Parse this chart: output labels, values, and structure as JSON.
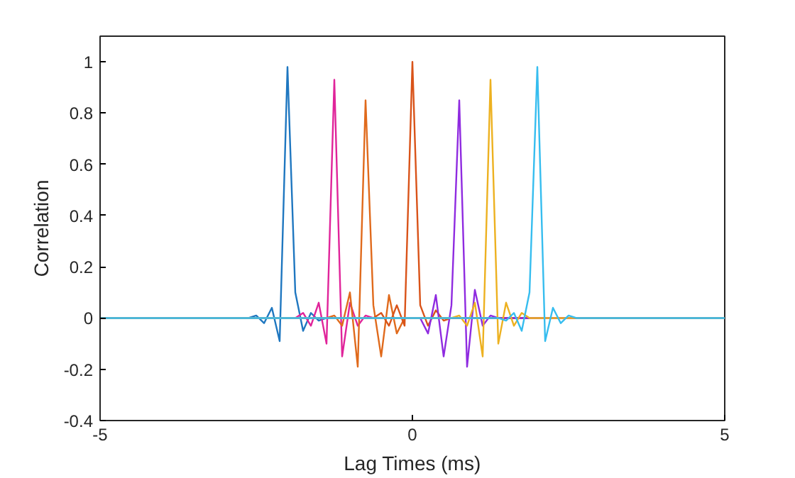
{
  "chart_data": {
    "type": "line",
    "xlabel": "Lag Times (ms)",
    "ylabel": "Correlation",
    "xlim": [
      -5,
      5
    ],
    "ylim": [
      -0.4,
      1.1
    ],
    "xticks": [
      -5,
      0,
      5
    ],
    "yticks": [
      -0.4,
      -0.2,
      0,
      0.2,
      0.4,
      0.6,
      0.8,
      1
    ],
    "grid": false,
    "series": [
      {
        "color": "#1f77c0",
        "x": [
          -5,
          -2.625,
          -2.5,
          -2.375,
          -2.25,
          -2.125,
          -2,
          -1.875,
          -1.75,
          -1.625,
          -1.5,
          -1.375,
          5
        ],
        "values": [
          0,
          0,
          0.01,
          -0.02,
          0.04,
          -0.09,
          0.98,
          0.1,
          -0.05,
          0.02,
          -0.01,
          0,
          0
        ]
      },
      {
        "color": "#e0249a",
        "x": [
          -5,
          -1.875,
          -1.75,
          -1.625,
          -1.5,
          -1.375,
          -1.25,
          -1.125,
          -1,
          -0.875,
          -0.75,
          -0.625,
          5
        ],
        "values": [
          0,
          0,
          0.02,
          -0.03,
          0.06,
          -0.1,
          0.93,
          -0.15,
          0.06,
          -0.03,
          0.01,
          0,
          0
        ]
      },
      {
        "color": "#e06a1c",
        "x": [
          -5,
          -1.375,
          -1.25,
          -1.125,
          -1,
          -0.875,
          -0.75,
          -0.625,
          -0.5,
          -0.375,
          -0.25,
          -0.125,
          5
        ],
        "values": [
          0,
          0,
          0.01,
          -0.03,
          0.1,
          -0.19,
          0.85,
          0.05,
          -0.15,
          0.09,
          -0.06,
          0,
          0
        ]
      },
      {
        "color": "#d95319",
        "x": [
          -5,
          -0.625,
          -0.5,
          -0.375,
          -0.25,
          -0.125,
          0,
          0.125,
          0.25,
          0.375,
          0.5,
          0.625,
          5
        ],
        "values": [
          0,
          0,
          0.02,
          -0.03,
          0.05,
          -0.03,
          1,
          0.05,
          -0.03,
          0.03,
          -0.01,
          0,
          0
        ]
      },
      {
        "color": "#8f2be0",
        "x": [
          -5,
          0.125,
          0.25,
          0.375,
          0.5,
          0.625,
          0.75,
          0.875,
          1,
          1.125,
          1.25,
          1.375,
          5
        ],
        "values": [
          0,
          0,
          -0.06,
          0.09,
          -0.15,
          0.05,
          0.85,
          -0.19,
          0.11,
          -0.03,
          0.01,
          0,
          0
        ]
      },
      {
        "color": "#edb120",
        "x": [
          -5,
          0.625,
          0.75,
          0.875,
          1,
          1.125,
          1.25,
          1.375,
          1.5,
          1.625,
          1.75,
          1.875,
          5
        ],
        "values": [
          0,
          0,
          0.01,
          -0.03,
          0.06,
          -0.15,
          0.93,
          -0.1,
          0.06,
          -0.03,
          0.02,
          0,
          0
        ]
      },
      {
        "color": "#36bdef",
        "x": [
          -5,
          1.375,
          1.5,
          1.625,
          1.75,
          1.875,
          2,
          2.125,
          2.25,
          2.375,
          2.5,
          2.625,
          5
        ],
        "values": [
          0,
          0,
          -0.01,
          0.02,
          -0.05,
          0.1,
          0.98,
          -0.09,
          0.04,
          -0.02,
          0.01,
          0,
          0
        ]
      }
    ]
  }
}
